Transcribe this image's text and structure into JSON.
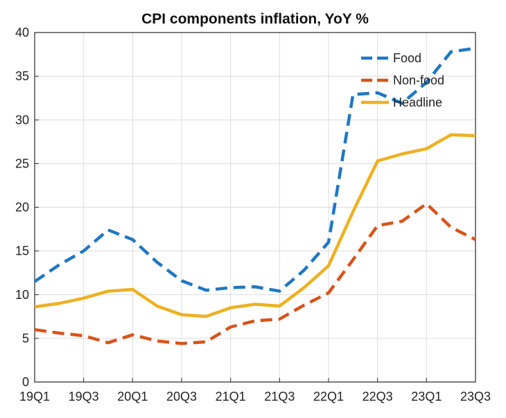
{
  "chart_data": {
    "type": "line",
    "title": "CPI components inflation, YoY %",
    "xlabel": "",
    "ylabel": "",
    "x": [
      "19Q1",
      "19Q2",
      "19Q3",
      "19Q4",
      "20Q1",
      "20Q2",
      "20Q3",
      "20Q4",
      "21Q1",
      "21Q2",
      "21Q3",
      "21Q4",
      "22Q1",
      "22Q2",
      "22Q3",
      "22Q4",
      "23Q1",
      "23Q2",
      "23Q3"
    ],
    "x_tick_labels": [
      "19Q1",
      "19Q3",
      "20Q1",
      "20Q3",
      "21Q1",
      "21Q3",
      "22Q1",
      "22Q3",
      "23Q1",
      "23Q3"
    ],
    "ylim": [
      0,
      40
    ],
    "y_ticks": [
      0,
      5,
      10,
      15,
      20,
      25,
      30,
      35,
      40
    ],
    "grid": true,
    "legend_position": "top-right",
    "series": [
      {
        "name": "Food",
        "color": "#1f77c4",
        "style": "dashed",
        "values": [
          11.5,
          13.4,
          15.0,
          17.4,
          16.3,
          13.7,
          11.6,
          10.5,
          10.8,
          10.9,
          10.4,
          12.8,
          16.0,
          32.9,
          33.1,
          31.9,
          34.3,
          37.8,
          38.2
        ]
      },
      {
        "name": "Non-food",
        "color": "#d95319",
        "style": "dashed",
        "values": [
          6.0,
          5.6,
          5.3,
          4.5,
          5.4,
          4.7,
          4.4,
          4.6,
          6.3,
          7.0,
          7.2,
          8.8,
          10.2,
          14.0,
          17.9,
          18.4,
          20.4,
          17.7,
          16.3
        ]
      },
      {
        "name": "Headline",
        "color": "#edb120",
        "style": "solid",
        "values": [
          8.6,
          9.0,
          9.6,
          10.4,
          10.6,
          8.7,
          7.7,
          7.5,
          8.5,
          8.9,
          8.7,
          10.8,
          13.3,
          19.5,
          25.3,
          26.1,
          26.7,
          28.3,
          28.2
        ]
      }
    ]
  }
}
